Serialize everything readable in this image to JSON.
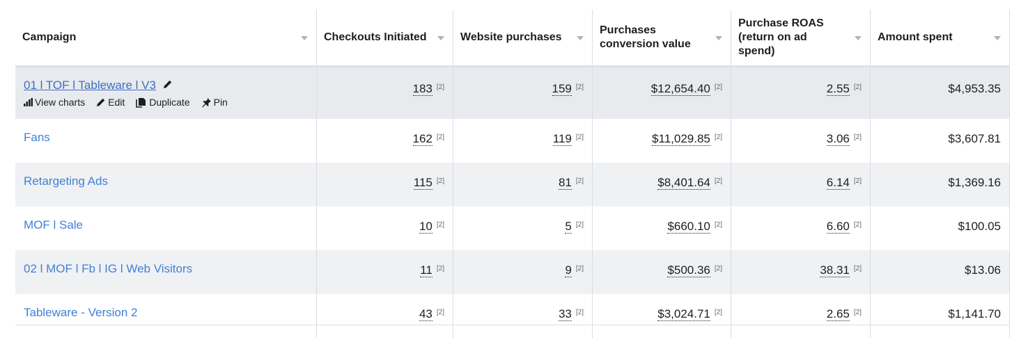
{
  "columns": [
    {
      "label": "Campaign"
    },
    {
      "label": "Checkouts Initiated"
    },
    {
      "label": "Website purchases"
    },
    {
      "label": "Purchases conversion value"
    },
    {
      "label": "Purchase ROAS (return on ad spend)"
    },
    {
      "label": "Amount spent"
    }
  ],
  "row_actions": {
    "view_charts": "View charts",
    "edit": "Edit",
    "duplicate": "Duplicate",
    "pin": "Pin"
  },
  "footnote": "[2]",
  "rows": [
    {
      "campaign": "01 l TOF l Tableware l V3",
      "checkouts": "183",
      "purchases": "159",
      "conversion_value": "$12,654.40",
      "roas": "2.55",
      "spent": "$4,953.35"
    },
    {
      "campaign": "Fans",
      "checkouts": "162",
      "purchases": "119",
      "conversion_value": "$11,029.85",
      "roas": "3.06",
      "spent": "$3,607.81"
    },
    {
      "campaign": "Retargeting Ads",
      "checkouts": "115",
      "purchases": "81",
      "conversion_value": "$8,401.64",
      "roas": "6.14",
      "spent": "$1,369.16"
    },
    {
      "campaign": "MOF l Sale",
      "checkouts": "10",
      "purchases": "5",
      "conversion_value": "$660.10",
      "roas": "6.60",
      "spent": "$100.05"
    },
    {
      "campaign": "02 l MOF l Fb l IG l Web Visitors",
      "checkouts": "11",
      "purchases": "9",
      "conversion_value": "$500.36",
      "roas": "38.31",
      "spent": "$13.06"
    },
    {
      "campaign": "Tableware - Version 2",
      "checkouts": "43",
      "purchases": "33",
      "conversion_value": "$3,024.71",
      "roas": "2.65",
      "spent": "$1,141.70"
    }
  ],
  "colors": {
    "link": "#4080d8",
    "header_border": "#d9e3f0",
    "row_shade": "#f0f1f3"
  }
}
